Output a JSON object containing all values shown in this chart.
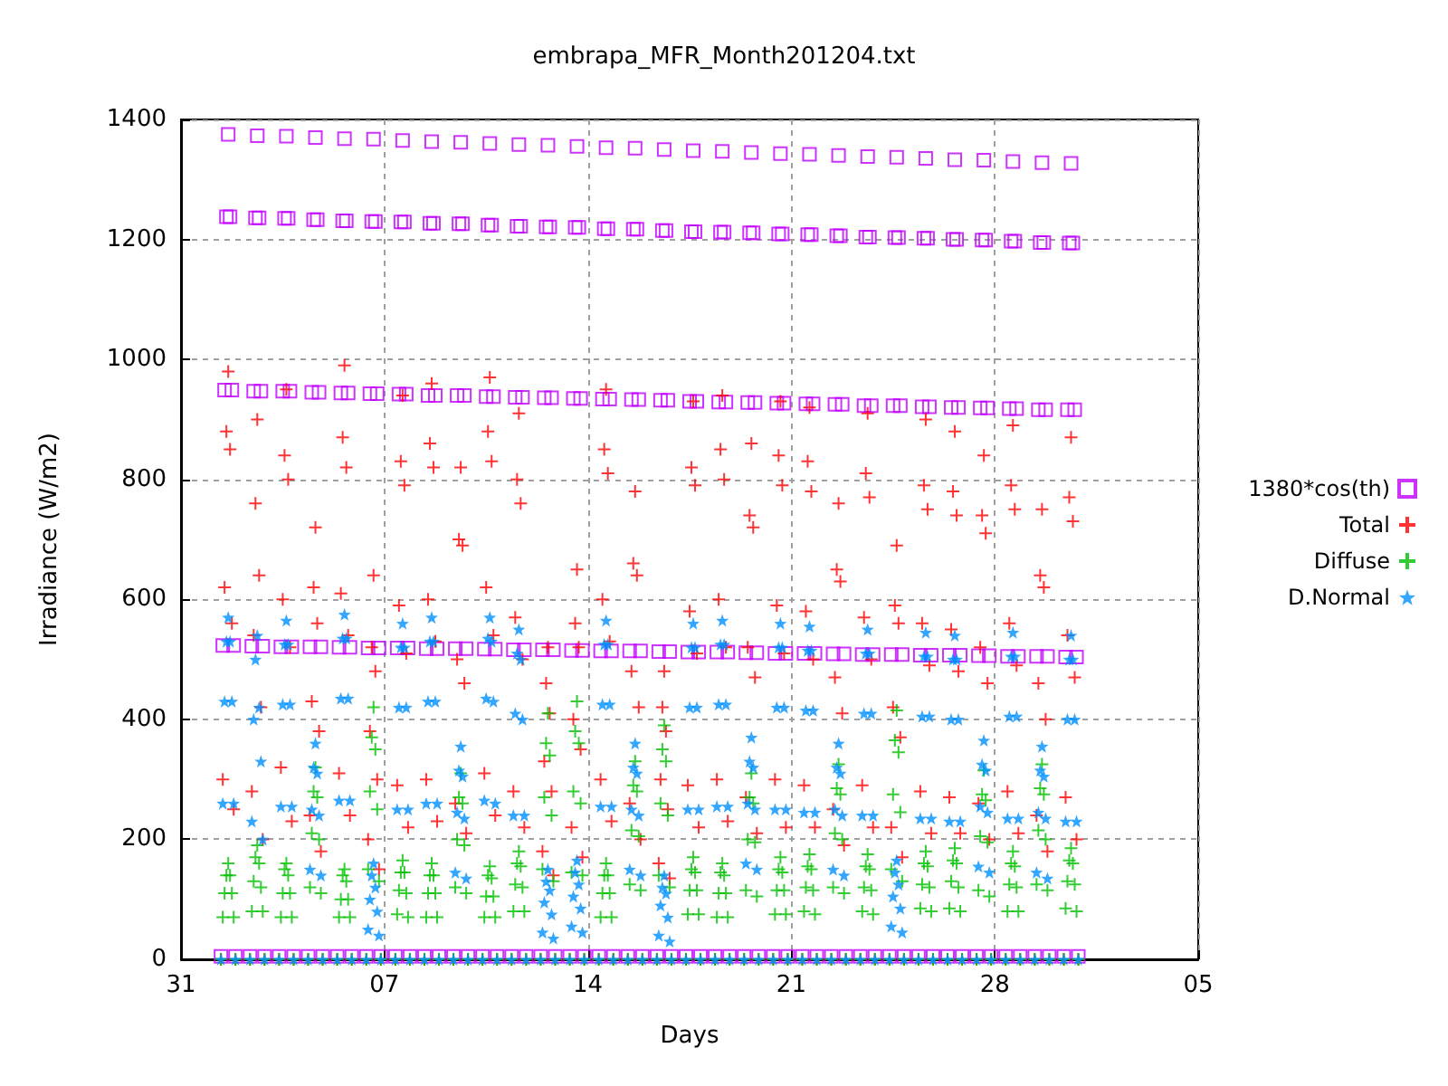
{
  "chart_data": {
    "type": "scatter",
    "title": "embrapa_MFR_Month201204.txt",
    "xlabel": "Days",
    "ylabel": "Irradiance (W/m2)",
    "xlim": [
      "2012-03-31",
      "2012-05-05"
    ],
    "xticks": [
      {
        "value": "2012-03-31",
        "label": "31"
      },
      {
        "value": "2012-04-07",
        "label": "07"
      },
      {
        "value": "2012-04-14",
        "label": "14"
      },
      {
        "value": "2012-04-21",
        "label": "21"
      },
      {
        "value": "2012-04-28",
        "label": "28"
      },
      {
        "value": "2012-05-05",
        "label": "05"
      }
    ],
    "ylim": [
      0,
      1400
    ],
    "yticks": [
      0,
      200,
      400,
      600,
      800,
      1000,
      1200,
      1400
    ],
    "grid": true,
    "legend": "right",
    "x": [
      "2012-04-01T09:00",
      "2012-04-01T10:30",
      "2012-04-01T12:00",
      "2012-04-01T13:30",
      "2012-04-01T15:00",
      "2012-04-01T16:30",
      "2012-04-01T18:00",
      "2012-04-01T19:30",
      "2012-04-01T21:00",
      "2012-04-02T09:00",
      "2012-04-02T10:30",
      "2012-04-02T12:00",
      "2012-04-02T13:30",
      "2012-04-02T15:00",
      "2012-04-02T16:30",
      "2012-04-02T18:00",
      "2012-04-02T19:30",
      "2012-04-02T21:00",
      "2012-04-03T09:00",
      "2012-04-03T10:30",
      "2012-04-03T12:00",
      "2012-04-03T13:30",
      "2012-04-03T15:00",
      "2012-04-03T16:30",
      "2012-04-03T18:00",
      "2012-04-03T19:30",
      "2012-04-03T21:00",
      "2012-04-04T09:00",
      "2012-04-04T10:30",
      "2012-04-04T12:00",
      "2012-04-04T13:30",
      "2012-04-04T15:00",
      "2012-04-04T16:30",
      "2012-04-04T18:00",
      "2012-04-04T19:30",
      "2012-04-04T21:00",
      "2012-04-05T09:00",
      "2012-04-05T10:30",
      "2012-04-05T12:00",
      "2012-04-05T13:30",
      "2012-04-05T15:00",
      "2012-04-05T16:30",
      "2012-04-05T18:00",
      "2012-04-05T19:30",
      "2012-04-05T21:00",
      "2012-04-06T09:00",
      "2012-04-06T10:30",
      "2012-04-06T12:00",
      "2012-04-06T13:30",
      "2012-04-06T15:00",
      "2012-04-06T16:30",
      "2012-04-06T18:00",
      "2012-04-06T19:30",
      "2012-04-06T21:00",
      "2012-04-07T09:00",
      "2012-04-07T10:30",
      "2012-04-07T12:00",
      "2012-04-07T13:30",
      "2012-04-07T15:00",
      "2012-04-07T16:30",
      "2012-04-07T18:00",
      "2012-04-07T19:30",
      "2012-04-07T21:00",
      "2012-04-08T09:00",
      "2012-04-08T10:30",
      "2012-04-08T12:00",
      "2012-04-08T13:30",
      "2012-04-08T15:00",
      "2012-04-08T16:30",
      "2012-04-08T18:00",
      "2012-04-08T19:30",
      "2012-04-08T21:00",
      "2012-04-09T09:00",
      "2012-04-09T10:30",
      "2012-04-09T12:00",
      "2012-04-09T13:30",
      "2012-04-09T15:00",
      "2012-04-09T16:30",
      "2012-04-09T18:00",
      "2012-04-09T19:30",
      "2012-04-09T21:00",
      "2012-04-10T09:00",
      "2012-04-10T10:30",
      "2012-04-10T12:00",
      "2012-04-10T13:30",
      "2012-04-10T15:00",
      "2012-04-10T16:30",
      "2012-04-10T18:00",
      "2012-04-10T19:30",
      "2012-04-10T21:00",
      "2012-04-11T09:00",
      "2012-04-11T10:30",
      "2012-04-11T12:00",
      "2012-04-11T13:30",
      "2012-04-11T15:00",
      "2012-04-11T16:30",
      "2012-04-11T18:00",
      "2012-04-11T19:30",
      "2012-04-11T21:00",
      "2012-04-12T09:00",
      "2012-04-12T10:30",
      "2012-04-12T12:00",
      "2012-04-12T13:30",
      "2012-04-12T15:00",
      "2012-04-12T16:30",
      "2012-04-12T18:00",
      "2012-04-12T19:30",
      "2012-04-12T21:00",
      "2012-04-13T09:00",
      "2012-04-13T10:30",
      "2012-04-13T12:00",
      "2012-04-13T13:30",
      "2012-04-13T15:00",
      "2012-04-13T16:30",
      "2012-04-13T18:00",
      "2012-04-13T19:30",
      "2012-04-13T21:00",
      "2012-04-14T09:00",
      "2012-04-14T10:30",
      "2012-04-14T12:00",
      "2012-04-14T13:30",
      "2012-04-14T15:00",
      "2012-04-14T16:30",
      "2012-04-14T18:00",
      "2012-04-14T19:30",
      "2012-04-14T21:00",
      "2012-04-15T09:00",
      "2012-04-15T10:30",
      "2012-04-15T12:00",
      "2012-04-15T13:30",
      "2012-04-15T15:00",
      "2012-04-15T16:30",
      "2012-04-15T18:00",
      "2012-04-15T19:30",
      "2012-04-15T21:00",
      "2012-04-16T09:00",
      "2012-04-16T10:30",
      "2012-04-16T12:00",
      "2012-04-16T13:30",
      "2012-04-16T15:00",
      "2012-04-16T16:30",
      "2012-04-16T18:00",
      "2012-04-16T19:30",
      "2012-04-16T21:00",
      "2012-04-17T09:00",
      "2012-04-17T10:30",
      "2012-04-17T12:00",
      "2012-04-17T13:30",
      "2012-04-17T15:00",
      "2012-04-17T16:30",
      "2012-04-17T18:00",
      "2012-04-17T19:30",
      "2012-04-17T21:00",
      "2012-04-18T09:00",
      "2012-04-18T10:30",
      "2012-04-18T12:00",
      "2012-04-18T13:30",
      "2012-04-18T15:00",
      "2012-04-18T16:30",
      "2012-04-18T18:00",
      "2012-04-18T19:30",
      "2012-04-18T21:00",
      "2012-04-19T09:00",
      "2012-04-19T10:30",
      "2012-04-19T12:00",
      "2012-04-19T13:30",
      "2012-04-19T15:00",
      "2012-04-19T16:30",
      "2012-04-19T18:00",
      "2012-04-19T19:30",
      "2012-04-19T21:00",
      "2012-04-20T09:00",
      "2012-04-20T10:30",
      "2012-04-20T12:00",
      "2012-04-20T13:30",
      "2012-04-20T15:00",
      "2012-04-20T16:30",
      "2012-04-20T18:00",
      "2012-04-20T19:30",
      "2012-04-20T21:00",
      "2012-04-21T09:00",
      "2012-04-21T10:30",
      "2012-04-21T12:00",
      "2012-04-21T13:30",
      "2012-04-21T15:00",
      "2012-04-21T16:30",
      "2012-04-21T18:00",
      "2012-04-21T19:30",
      "2012-04-21T21:00",
      "2012-04-22T09:00",
      "2012-04-22T10:30",
      "2012-04-22T12:00",
      "2012-04-22T13:30",
      "2012-04-22T15:00",
      "2012-04-22T16:30",
      "2012-04-22T18:00",
      "2012-04-22T19:30",
      "2012-04-22T21:00",
      "2012-04-23T09:00",
      "2012-04-23T10:30",
      "2012-04-23T12:00",
      "2012-04-23T13:30",
      "2012-04-23T15:00",
      "2012-04-23T16:30",
      "2012-04-23T18:00",
      "2012-04-23T19:30",
      "2012-04-23T21:00",
      "2012-04-24T09:00",
      "2012-04-24T10:30",
      "2012-04-24T12:00",
      "2012-04-24T13:30",
      "2012-04-24T15:00",
      "2012-04-24T16:30",
      "2012-04-24T18:00",
      "2012-04-24T19:30",
      "2012-04-24T21:00",
      "2012-04-25T09:00",
      "2012-04-25T10:30",
      "2012-04-25T12:00",
      "2012-04-25T13:30",
      "2012-04-25T15:00",
      "2012-04-25T16:30",
      "2012-04-25T18:00",
      "2012-04-25T19:30",
      "2012-04-25T21:00",
      "2012-04-26T09:00",
      "2012-04-26T10:30",
      "2012-04-26T12:00",
      "2012-04-26T13:30",
      "2012-04-26T15:00",
      "2012-04-26T16:30",
      "2012-04-26T18:00",
      "2012-04-26T19:30",
      "2012-04-26T21:00",
      "2012-04-27T09:00",
      "2012-04-27T10:30",
      "2012-04-27T12:00",
      "2012-04-27T13:30",
      "2012-04-27T15:00",
      "2012-04-27T16:30",
      "2012-04-27T18:00",
      "2012-04-27T19:30",
      "2012-04-27T21:00",
      "2012-04-28T09:00",
      "2012-04-28T10:30",
      "2012-04-28T12:00",
      "2012-04-28T13:30",
      "2012-04-28T15:00",
      "2012-04-28T16:30",
      "2012-04-28T18:00",
      "2012-04-28T19:30",
      "2012-04-28T21:00",
      "2012-04-29T09:00",
      "2012-04-29T10:30",
      "2012-04-29T12:00",
      "2012-04-29T13:30",
      "2012-04-29T15:00",
      "2012-04-29T16:30",
      "2012-04-29T18:00",
      "2012-04-29T19:30",
      "2012-04-29T21:00",
      "2012-04-30T09:00",
      "2012-04-30T10:30",
      "2012-04-30T12:00",
      "2012-04-30T13:30",
      "2012-04-30T15:00",
      "2012-04-30T16:30",
      "2012-04-30T18:00",
      "2012-04-30T19:30",
      "2012-04-30T21:00"
    ],
    "series": [
      {
        "name": "1380*cos(th)",
        "color": "#c000ff",
        "marker": "square",
        "values": [
          5,
          523,
          949,
          1238,
          1375,
          1238,
          949,
          523,
          5,
          5,
          522,
          947,
          1236,
          1373,
          1236,
          947,
          522,
          5,
          5,
          521,
          947,
          1235,
          1372,
          1235,
          947,
          521,
          5,
          5,
          521,
          945,
          1233,
          1370,
          1233,
          945,
          521,
          5,
          5,
          520,
          944,
          1231,
          1368,
          1231,
          944,
          520,
          5,
          5,
          519,
          943,
          1230,
          1367,
          1230,
          943,
          519,
          5,
          5,
          519,
          942,
          1229,
          1365,
          1229,
          942,
          519,
          5,
          5,
          518,
          940,
          1227,
          1363,
          1227,
          940,
          518,
          5,
          5,
          518,
          940,
          1226,
          1362,
          1226,
          940,
          518,
          5,
          5,
          517,
          938,
          1224,
          1360,
          1224,
          938,
          517,
          5,
          5,
          516,
          937,
          1222,
          1358,
          1222,
          937,
          516,
          5,
          5,
          516,
          936,
          1221,
          1357,
          1221,
          936,
          516,
          5,
          5,
          515,
          935,
          1220,
          1355,
          1220,
          935,
          515,
          5,
          5,
          514,
          934,
          1218,
          1353,
          1218,
          934,
          514,
          5,
          5,
          514,
          933,
          1217,
          1352,
          1217,
          933,
          514,
          5,
          5,
          513,
          932,
          1215,
          1350,
          1215,
          932,
          513,
          5,
          5,
          512,
          930,
          1213,
          1348,
          1213,
          930,
          512,
          5,
          5,
          512,
          929,
          1212,
          1347,
          1212,
          929,
          512,
          5,
          5,
          511,
          928,
          1211,
          1345,
          1211,
          928,
          511,
          5,
          5,
          510,
          927,
          1209,
          1343,
          1209,
          927,
          510,
          5,
          5,
          510,
          926,
          1208,
          1342,
          1208,
          926,
          510,
          5,
          5,
          509,
          925,
          1206,
          1340,
          1206,
          925,
          509,
          5,
          5,
          508,
          923,
          1204,
          1338,
          1204,
          923,
          508,
          5,
          5,
          508,
          923,
          1203,
          1337,
          1203,
          923,
          508,
          5,
          5,
          507,
          921,
          1202,
          1335,
          1202,
          921,
          507,
          5,
          5,
          507,
          920,
          1200,
          1333,
          1200,
          920,
          507,
          5,
          5,
          506,
          919,
          1199,
          1332,
          1199,
          919,
          506,
          5,
          5,
          505,
          918,
          1197,
          1330,
          1197,
          918,
          505,
          5,
          5,
          505,
          916,
          1195,
          1328,
          1195,
          916,
          505,
          5,
          5,
          504,
          916,
          1194,
          1327,
          1194,
          916,
          504,
          5
        ]
      },
      {
        "name": "Total",
        "color": "#ff0000",
        "marker": "cross",
        "values": [
          0,
          300,
          620,
          880,
          980,
          850,
          560,
          250,
          0,
          0,
          280,
          540,
          760,
          900,
          640,
          420,
          200,
          0,
          0,
          320,
          600,
          840,
          950,
          800,
          520,
          230,
          0,
          0,
          240,
          430,
          620,
          720,
          560,
          380,
          180,
          0,
          0,
          310,
          610,
          870,
          990,
          820,
          540,
          240,
          0,
          0,
          200,
          380,
          520,
          640,
          480,
          300,
          150,
          0,
          0,
          290,
          590,
          830,
          940,
          790,
          510,
          220,
          0,
          0,
          300,
          600,
          860,
          960,
          820,
          530,
          230,
          0,
          0,
          260,
          500,
          700,
          820,
          690,
          460,
          210,
          0,
          0,
          310,
          620,
          880,
          970,
          830,
          540,
          240,
          0,
          0,
          280,
          570,
          800,
          910,
          760,
          500,
          220,
          0,
          0,
          180,
          330,
          460,
          520,
          410,
          280,
          140,
          0,
          0,
          220,
          400,
          560,
          650,
          520,
          350,
          170,
          0,
          0,
          300,
          600,
          850,
          950,
          810,
          530,
          230,
          0,
          0,
          260,
          480,
          660,
          780,
          640,
          420,
          200,
          0,
          0,
          160,
          300,
          420,
          480,
          380,
          250,
          135,
          0,
          0,
          290,
          580,
          820,
          930,
          790,
          510,
          220,
          0,
          0,
          300,
          600,
          850,
          940,
          800,
          520,
          230,
          0,
          0,
          270,
          520,
          740,
          860,
          720,
          470,
          210,
          0,
          0,
          300,
          590,
          840,
          930,
          790,
          510,
          220,
          0,
          0,
          290,
          580,
          830,
          920,
          780,
          500,
          220,
          0,
          0,
          250,
          470,
          650,
          760,
          630,
          410,
          190,
          0,
          0,
          290,
          570,
          810,
          910,
          770,
          500,
          220,
          0,
          0,
          220,
          420,
          590,
          690,
          560,
          370,
          170,
          0,
          0,
          280,
          560,
          790,
          900,
          750,
          490,
          210,
          0,
          0,
          270,
          550,
          780,
          880,
          740,
          480,
          210,
          0,
          0,
          260,
          520,
          740,
          840,
          710,
          460,
          200,
          0,
          0,
          280,
          560,
          790,
          890,
          750,
          490,
          210,
          0,
          0,
          240,
          460,
          640,
          750,
          620,
          400,
          180,
          0,
          0,
          270,
          540,
          770,
          870,
          730,
          470,
          200,
          0
        ]
      },
      {
        "name": "Diffuse",
        "color": "#00c000",
        "marker": "cross",
        "values": [
          0,
          70,
          110,
          140,
          160,
          140,
          110,
          70,
          0,
          0,
          80,
          130,
          170,
          190,
          160,
          120,
          80,
          0,
          0,
          70,
          110,
          150,
          160,
          140,
          110,
          70,
          0,
          0,
          120,
          210,
          280,
          320,
          270,
          200,
          110,
          0,
          0,
          70,
          100,
          140,
          150,
          130,
          100,
          70,
          0,
          0,
          150,
          280,
          370,
          420,
          350,
          250,
          130,
          0,
          0,
          75,
          115,
          145,
          165,
          145,
          110,
          70,
          0,
          0,
          70,
          110,
          140,
          160,
          140,
          110,
          70,
          0,
          0,
          120,
          200,
          270,
          310,
          260,
          190,
          110,
          0,
          0,
          70,
          105,
          140,
          155,
          135,
          105,
          70,
          0,
          0,
          80,
          125,
          160,
          180,
          155,
          120,
          80,
          0,
          0,
          150,
          270,
          360,
          410,
          340,
          240,
          130,
          0,
          0,
          145,
          280,
          380,
          430,
          360,
          260,
          140,
          0,
          0,
          70,
          110,
          140,
          160,
          140,
          110,
          70,
          0,
          0,
          125,
          215,
          290,
          330,
          280,
          205,
          115,
          0,
          0,
          140,
          260,
          350,
          390,
          330,
          240,
          120,
          0,
          0,
          75,
          115,
          150,
          170,
          145,
          115,
          75,
          0,
          0,
          70,
          110,
          145,
          160,
          140,
          110,
          70,
          0,
          0,
          115,
          200,
          270,
          310,
          260,
          195,
          105,
          0,
          0,
          75,
          115,
          150,
          170,
          145,
          115,
          75,
          0,
          0,
          80,
          120,
          155,
          175,
          150,
          115,
          75,
          0,
          0,
          120,
          210,
          285,
          325,
          275,
          200,
          110,
          0,
          0,
          80,
          120,
          155,
          175,
          150,
          115,
          75,
          0,
          0,
          150,
          275,
          365,
          415,
          345,
          245,
          130,
          0,
          0,
          85,
          125,
          160,
          180,
          155,
          120,
          80,
          0,
          0,
          85,
          130,
          165,
          185,
          160,
          120,
          80,
          0,
          0,
          115,
          205,
          275,
          315,
          265,
          195,
          105,
          0,
          0,
          80,
          125,
          160,
          180,
          155,
          120,
          80,
          0,
          0,
          125,
          215,
          285,
          325,
          275,
          200,
          115,
          0,
          0,
          85,
          130,
          165,
          185,
          160,
          125,
          80,
          0
        ]
      },
      {
        "name": "D.Normal",
        "color": "#0090ff",
        "marker": "star",
        "values": [
          0,
          260,
          430,
          530,
          570,
          530,
          430,
          260,
          0,
          0,
          230,
          400,
          500,
          540,
          420,
          330,
          200,
          0,
          0,
          255,
          425,
          525,
          565,
          525,
          425,
          255,
          0,
          0,
          150,
          250,
          320,
          360,
          310,
          240,
          140,
          0,
          0,
          265,
          435,
          535,
          575,
          535,
          435,
          265,
          0,
          0,
          50,
          100,
          140,
          160,
          120,
          80,
          40,
          0,
          0,
          250,
          420,
          520,
          560,
          520,
          420,
          250,
          0,
          0,
          260,
          430,
          530,
          570,
          530,
          430,
          260,
          0,
          0,
          145,
          245,
          315,
          355,
          305,
          235,
          135,
          0,
          0,
          265,
          435,
          535,
          570,
          530,
          430,
          260,
          0,
          0,
          240,
          410,
          510,
          550,
          500,
          400,
          240,
          0,
          0,
          45,
          95,
          130,
          150,
          115,
          75,
          35,
          0,
          0,
          55,
          105,
          145,
          165,
          125,
          85,
          45,
          0,
          0,
          255,
          425,
          525,
          565,
          525,
          425,
          255,
          0,
          0,
          150,
          250,
          320,
          360,
          310,
          240,
          140,
          0,
          0,
          40,
          90,
          120,
          140,
          110,
          70,
          30,
          0,
          0,
          250,
          420,
          520,
          560,
          520,
          420,
          250,
          0,
          0,
          255,
          425,
          525,
          565,
          525,
          425,
          255,
          0,
          0,
          160,
          260,
          330,
          370,
          320,
          250,
          150,
          0,
          0,
          250,
          420,
          520,
          560,
          520,
          420,
          250,
          0,
          0,
          245,
          415,
          515,
          555,
          515,
          415,
          245,
          0,
          0,
          150,
          250,
          320,
          360,
          310,
          240,
          140,
          0,
          0,
          240,
          410,
          510,
          550,
          510,
          410,
          240,
          0,
          0,
          55,
          105,
          145,
          165,
          125,
          85,
          45,
          0,
          0,
          235,
          405,
          505,
          545,
          505,
          405,
          235,
          0,
          0,
          230,
          400,
          500,
          540,
          500,
          400,
          230,
          0,
          0,
          155,
          255,
          325,
          365,
          315,
          245,
          145,
          0,
          0,
          235,
          405,
          505,
          545,
          505,
          405,
          235,
          0,
          0,
          145,
          245,
          315,
          355,
          305,
          235,
          135,
          0,
          0,
          230,
          400,
          500,
          540,
          500,
          400,
          230,
          0
        ]
      }
    ]
  }
}
